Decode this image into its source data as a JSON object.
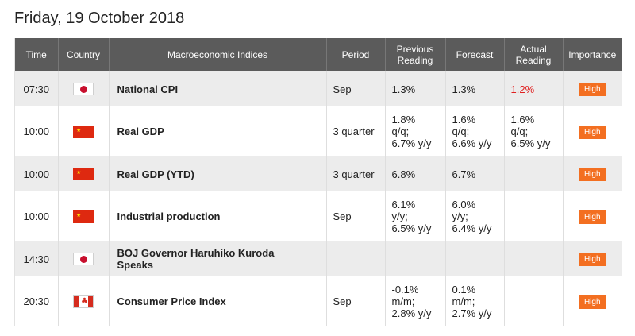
{
  "page": {
    "date_title": "Friday, 19 October 2018"
  },
  "colors": {
    "header_bg": "#5b5b5b",
    "row_alt_bg": "#ececec",
    "importance_badge": "#f36f21",
    "actual_highlight": "#e02020"
  },
  "columns": {
    "time": "Time",
    "country": "Country",
    "indices": "Macroeconomic Indices",
    "period": "Period",
    "previous": [
      "Previous",
      "Reading"
    ],
    "forecast": "Forecast",
    "actual": [
      "Actual",
      "Reading"
    ],
    "importance": "Importance"
  },
  "rows": [
    {
      "time": "07:30",
      "flag": "japan-flag-icon",
      "event": [
        "National CPI"
      ],
      "period": "Sep",
      "previous": [
        "1.3%"
      ],
      "forecast": [
        "1.3%"
      ],
      "actual": [
        "1.2%"
      ],
      "importance": "High"
    },
    {
      "time": "10:00",
      "flag": "china-flag-icon",
      "event": [
        "Real GDP"
      ],
      "period": "3 quarter",
      "previous": [
        "1.8%",
        "q/q;",
        "6.7% y/y"
      ],
      "forecast": [
        "1.6%",
        "q/q;",
        "6.6% y/y"
      ],
      "actual": [
        "1.6%",
        "q/q;",
        "6.5% y/y"
      ],
      "importance": "High"
    },
    {
      "time": "10:00",
      "flag": "china-flag-icon",
      "event": [
        "Real GDP (YTD)"
      ],
      "period": "3 quarter",
      "previous": [
        "6.8%"
      ],
      "forecast": [
        "6.7%"
      ],
      "actual": [
        ""
      ],
      "importance": "High"
    },
    {
      "time": "10:00",
      "flag": "china-flag-icon",
      "event": [
        "Industrial production"
      ],
      "period": "Sep",
      "previous": [
        "6.1%",
        "y/y;",
        "6.5% y/y"
      ],
      "forecast": [
        "6.0%",
        "y/y;",
        "6.4% y/y"
      ],
      "actual": [
        ""
      ],
      "importance": "High"
    },
    {
      "time": "14:30",
      "flag": "japan-flag-icon",
      "event": [
        "BOJ Governor Haruhiko Kuroda",
        "Speaks"
      ],
      "period": "",
      "previous": [
        ""
      ],
      "forecast": [
        ""
      ],
      "actual": [
        ""
      ],
      "importance": "High"
    },
    {
      "time": "20:30",
      "flag": "canada-flag-icon",
      "event": [
        "Consumer Price Index"
      ],
      "period": "Sep",
      "previous": [
        "-0.1%",
        "m/m;",
        "2.8% y/y"
      ],
      "forecast": [
        "0.1%",
        "m/m;",
        "2.7% y/y"
      ],
      "actual": [
        ""
      ],
      "importance": "High"
    }
  ]
}
